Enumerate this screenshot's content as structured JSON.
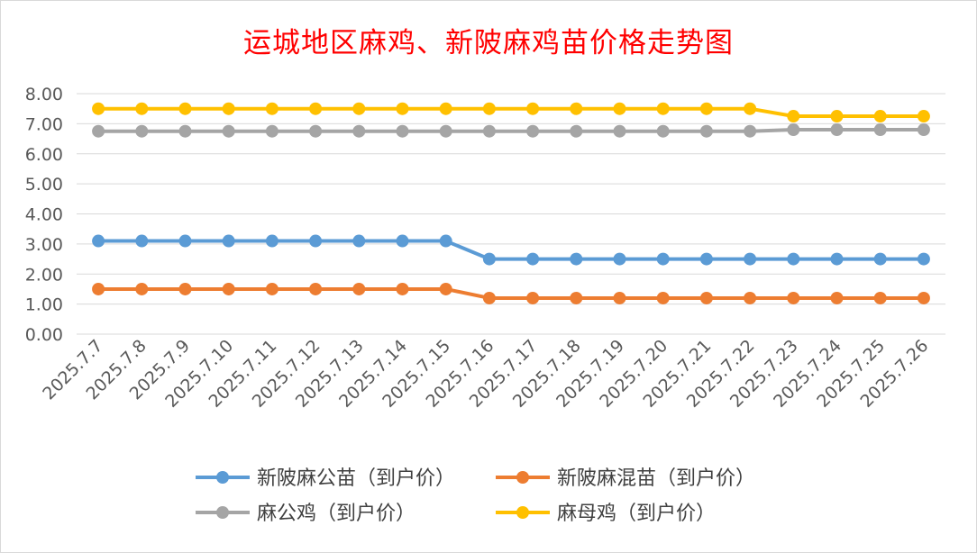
{
  "chart_data": {
    "type": "line",
    "title": "运城地区麻鸡、新陂麻鸡苗价格走势图",
    "categories": [
      "2025.7.7",
      "2025.7.8",
      "2025.7.9",
      "2025.7.10",
      "2025.7.11",
      "2025.7.12",
      "2025.7.13",
      "2025.7.14",
      "2025.7.15",
      "2025.7.16",
      "2025.7.17",
      "2025.7.18",
      "2025.7.19",
      "2025.7.20",
      "2025.7.21",
      "2025.7.22",
      "2025.7.23",
      "2025.7.24",
      "2025.7.25",
      "2025.7.26"
    ],
    "yticks": [
      "0.00",
      "1.00",
      "2.00",
      "3.00",
      "4.00",
      "5.00",
      "6.00",
      "7.00",
      "8.00"
    ],
    "ylim": [
      0,
      8
    ],
    "grid": true,
    "legend_position": "bottom",
    "series": [
      {
        "name": "新陂麻公苗（到户价）",
        "color": "#5b9bd5",
        "values": [
          3.1,
          3.1,
          3.1,
          3.1,
          3.1,
          3.1,
          3.1,
          3.1,
          3.1,
          2.5,
          2.5,
          2.5,
          2.5,
          2.5,
          2.5,
          2.5,
          2.5,
          2.5,
          2.5,
          2.5
        ]
      },
      {
        "name": "新陂麻混苗（到户价）",
        "color": "#ed7d31",
        "values": [
          1.5,
          1.5,
          1.5,
          1.5,
          1.5,
          1.5,
          1.5,
          1.5,
          1.5,
          1.2,
          1.2,
          1.2,
          1.2,
          1.2,
          1.2,
          1.2,
          1.2,
          1.2,
          1.2,
          1.2
        ]
      },
      {
        "name": "麻公鸡（到户价）",
        "color": "#a5a5a5",
        "values": [
          6.75,
          6.75,
          6.75,
          6.75,
          6.75,
          6.75,
          6.75,
          6.75,
          6.75,
          6.75,
          6.75,
          6.75,
          6.75,
          6.75,
          6.75,
          6.75,
          6.8,
          6.8,
          6.8,
          6.8
        ]
      },
      {
        "name": "麻母鸡（到户价）",
        "color": "#ffc000",
        "values": [
          7.5,
          7.5,
          7.5,
          7.5,
          7.5,
          7.5,
          7.5,
          7.5,
          7.5,
          7.5,
          7.5,
          7.5,
          7.5,
          7.5,
          7.5,
          7.5,
          7.25,
          7.25,
          7.25,
          7.25
        ]
      }
    ]
  }
}
